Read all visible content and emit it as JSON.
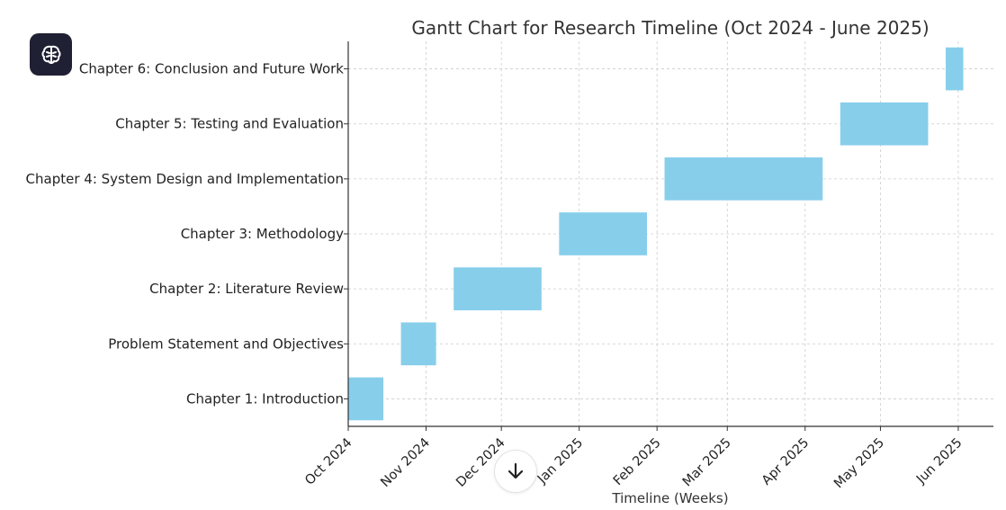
{
  "app": {
    "icon": "brain-icon"
  },
  "scroll_button": {
    "icon": "arrow-down-icon"
  },
  "chart_data": {
    "type": "gantt",
    "title": "Gantt Chart for Research Timeline (Oct 2024 - June 2025)",
    "xlabel": "Timeline (Weeks)",
    "ylabel": "",
    "x_ticks": [
      "2024-10-01",
      "2024-11-01",
      "2024-12-01",
      "2025-01-01",
      "2025-02-01",
      "2025-03-01",
      "2025-04-01",
      "2025-05-01",
      "2025-06-01"
    ],
    "x_tick_labels": [
      "Oct 2024",
      "Nov 2024",
      "Dec 2024",
      "Jan 2025",
      "Feb 2025",
      "Mar 2025",
      "Apr 2025",
      "May 2025",
      "Jun 2025"
    ],
    "xlim": [
      "2024-10-01",
      "2025-06-15"
    ],
    "grid": true,
    "bar_color": "#87ceeb",
    "tasks": [
      {
        "label": "Chapter 1: Introduction",
        "start": "2024-10-01",
        "end": "2024-10-15"
      },
      {
        "label": "Problem Statement and Objectives",
        "start": "2024-10-22",
        "end": "2024-11-05"
      },
      {
        "label": "Chapter 2: Literature Review",
        "start": "2024-11-12",
        "end": "2024-12-17"
      },
      {
        "label": "Chapter 3: Methodology",
        "start": "2024-12-24",
        "end": "2025-01-28"
      },
      {
        "label": "Chapter 4: System Design and Implementation",
        "start": "2025-02-04",
        "end": "2025-04-08"
      },
      {
        "label": "Chapter 5: Testing and Evaluation",
        "start": "2025-04-15",
        "end": "2025-05-20"
      },
      {
        "label": "Chapter 6: Conclusion and Future Work",
        "start": "2025-05-27",
        "end": "2025-06-03"
      }
    ]
  }
}
